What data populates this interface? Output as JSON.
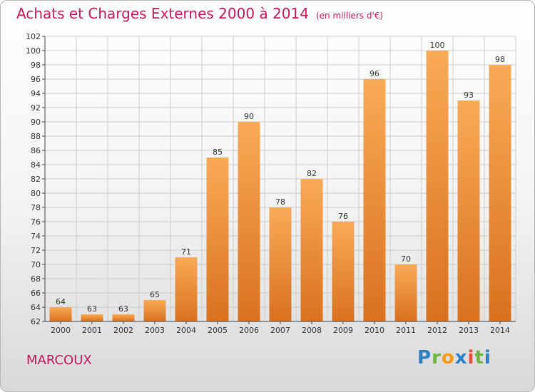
{
  "header": {
    "title": "Achats et Charges Externes 2000 à 2014",
    "unit": "(en milliers d'€)"
  },
  "footer": {
    "commune": "MARCOUX",
    "logo": "Proxiti"
  },
  "colors": {
    "title": "#c2185b",
    "bar_light": "#f9aa57",
    "bar_dark": "#d9711f",
    "grid": "#cccccc"
  },
  "chart_data": {
    "type": "bar",
    "categories": [
      "2000",
      "2001",
      "2002",
      "2003",
      "2004",
      "2005",
      "2006",
      "2007",
      "2008",
      "2009",
      "2010",
      "2011",
      "2012",
      "2013",
      "2014"
    ],
    "values": [
      64,
      63,
      63,
      65,
      71,
      85,
      90,
      78,
      82,
      76,
      96,
      70,
      100,
      93,
      98
    ],
    "ylim": [
      62,
      102
    ],
    "yticks": [
      62,
      64,
      66,
      68,
      70,
      72,
      74,
      76,
      78,
      80,
      82,
      84,
      86,
      88,
      90,
      92,
      94,
      96,
      98,
      100,
      102
    ],
    "grid": true,
    "data_labels": true
  }
}
